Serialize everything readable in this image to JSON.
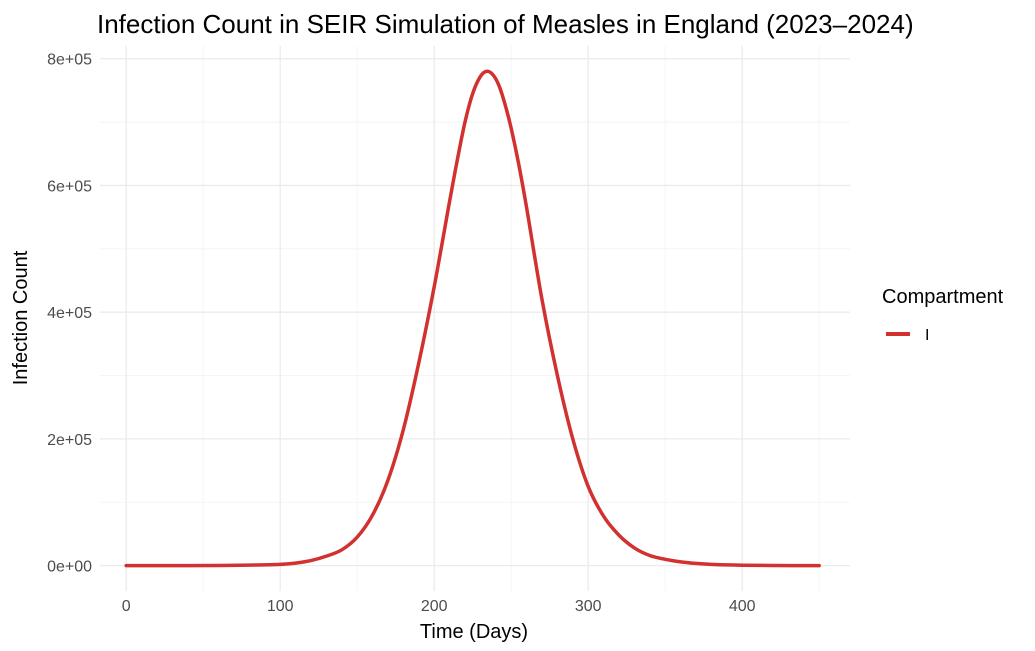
{
  "chart_data": {
    "type": "line",
    "title": "Infection Count in SEIR Simulation of Measles in England (2023–2024)",
    "xlabel": "Time (Days)",
    "ylabel": "Infection Count",
    "xlim": [
      -17,
      470
    ],
    "ylim": [
      -40000,
      820000
    ],
    "x_ticks": [
      0,
      100,
      200,
      300,
      400
    ],
    "x_tick_labels": [
      "0",
      "100",
      "200",
      "300",
      "400"
    ],
    "y_ticks": [
      0,
      200000,
      400000,
      600000,
      800000
    ],
    "y_tick_labels": [
      "0e+00",
      "2e+05",
      "4e+05",
      "6e+05",
      "8e+05"
    ],
    "grid": true,
    "legend": {
      "title": "Compartment",
      "position": "right"
    },
    "series": [
      {
        "name": "I",
        "color": "#d1312f",
        "x": [
          0,
          20,
          40,
          60,
          80,
          100,
          110,
          120,
          130,
          140,
          150,
          160,
          170,
          180,
          190,
          200,
          210,
          215,
          220,
          225,
          230,
          234,
          238,
          242,
          246,
          250,
          255,
          260,
          270,
          280,
          290,
          300,
          310,
          320,
          330,
          340,
          350,
          360,
          370,
          380,
          390,
          400,
          420,
          450
        ],
        "y": [
          0,
          0,
          100,
          300,
          800,
          2000,
          4000,
          8000,
          15000,
          25000,
          45000,
          80000,
          135000,
          215000,
          320000,
          440000,
          575000,
          640000,
          700000,
          745000,
          772000,
          780000,
          775000,
          758000,
          728000,
          690000,
          632000,
          565000,
          420000,
          300000,
          200000,
          125000,
          78000,
          48000,
          28000,
          16000,
          10000,
          6000,
          3500,
          2000,
          1200,
          700,
          200,
          0
        ]
      }
    ]
  }
}
